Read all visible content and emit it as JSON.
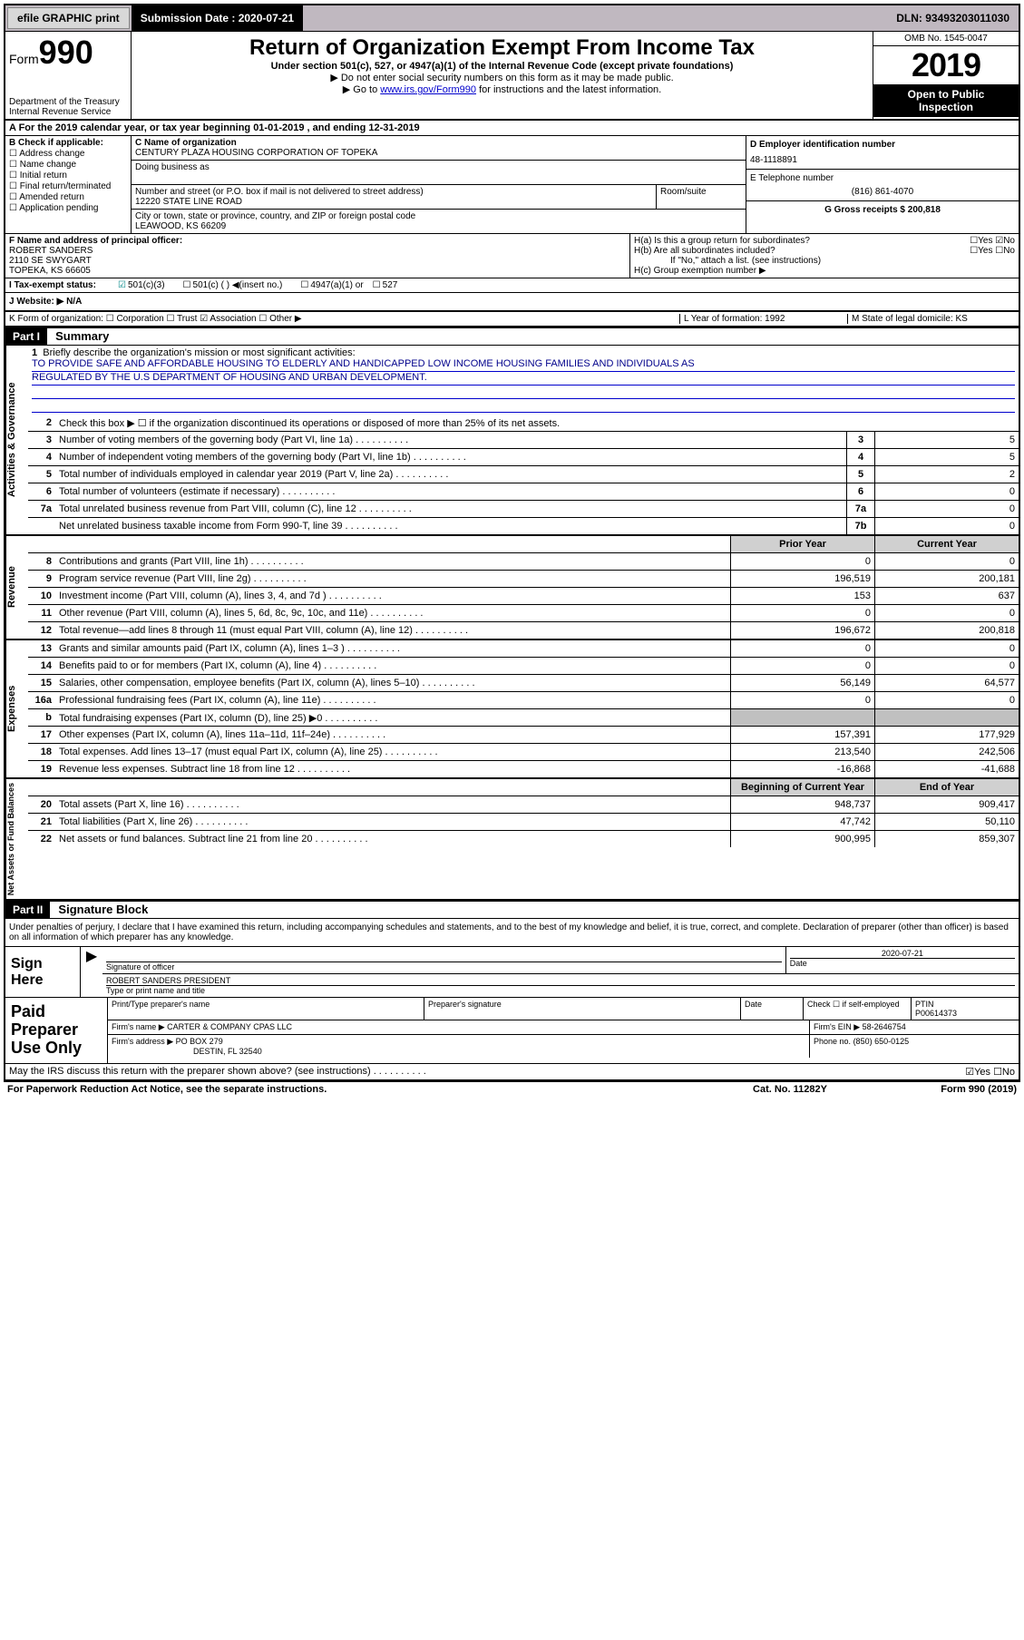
{
  "topbar": {
    "efile": "efile GRAPHIC print",
    "submission_label": "Submission Date : 2020-07-21",
    "dln": "DLN: 93493203011030"
  },
  "header": {
    "form_label": "Form",
    "form_number": "990",
    "dept": "Department of the Treasury",
    "irs": "Internal Revenue Service",
    "title": "Return of Organization Exempt From Income Tax",
    "subtitle": "Under section 501(c), 527, or 4947(a)(1) of the Internal Revenue Code (except private foundations)",
    "note1": "▶ Do not enter social security numbers on this form as it may be made public.",
    "note2_pre": "▶ Go to ",
    "note2_link": "www.irs.gov/Form990",
    "note2_post": " for instructions and the latest information.",
    "omb": "OMB No. 1545-0047",
    "year": "2019",
    "otp1": "Open to Public",
    "otp2": "Inspection"
  },
  "row_a": "A  For the 2019 calendar year, or tax year beginning 01-01-2019    , and ending 12-31-2019",
  "col_b": {
    "label": "B Check if applicable:",
    "items": [
      "Address change",
      "Name change",
      "Initial return",
      "Final return/terminated",
      "Amended return",
      "Application pending"
    ]
  },
  "col_c": {
    "name_label": "C Name of organization",
    "name": "CENTURY PLAZA HOUSING CORPORATION OF TOPEKA",
    "dba_label": "Doing business as",
    "addr_label": "Number and street (or P.O. box if mail is not delivered to street address)",
    "addr": "12220 STATE LINE ROAD",
    "room_label": "Room/suite",
    "city_label": "City or town, state or province, country, and ZIP or foreign postal code",
    "city": "LEAWOOD, KS  66209"
  },
  "col_deg": {
    "d_label": "D Employer identification number",
    "d_val": "48-1118891",
    "e_label": "E Telephone number",
    "e_val": "(816) 861-4070",
    "g_label": "G Gross receipts $ 200,818"
  },
  "col_f": {
    "label": "F  Name and address of principal officer:",
    "name": "ROBERT SANDERS",
    "addr1": "2110 SE SWYGART",
    "addr2": "TOPEKA, KS  66605"
  },
  "col_h": {
    "ha": "H(a)  Is this a group return for subordinates?",
    "ha_ans": "☐Yes  ☑No",
    "hb": "H(b)  Are all subordinates included?",
    "hb_ans": "☐Yes  ☐No",
    "hb_note": "If \"No,\" attach a list. (see instructions)",
    "hc": "H(c)  Group exemption number ▶"
  },
  "row_i": {
    "label": "I  Tax-exempt status:",
    "opt1": "501(c)(3)",
    "opt2": "501(c) (  ) ◀(insert no.)",
    "opt3": "4947(a)(1) or",
    "opt4": "527"
  },
  "row_j": "J  Website: ▶   N/A",
  "row_k": {
    "left": "K Form of organization:   ☐ Corporation  ☐ Trust  ☑ Association  ☐ Other ▶",
    "l": "L Year of formation: 1992",
    "m": "M State of legal domicile: KS"
  },
  "part1": {
    "header": "Part I",
    "title": "Summary"
  },
  "briefly": {
    "num": "1",
    "label": "Briefly describe the organization's mission or most significant activities:",
    "text1": "TO PROVIDE SAFE AND AFFORDABLE HOUSING TO ELDERLY AND HANDICAPPED LOW INCOME HOUSING FAMILIES AND INDIVIDUALS AS",
    "text2": "REGULATED BY THE U.S DEPARTMENT OF HOUSING AND URBAN DEVELOPMENT."
  },
  "gov_lines": [
    {
      "num": "2",
      "txt": "Check this box ▶ ☐  if the organization discontinued its operations or disposed of more than 25% of its net assets."
    },
    {
      "num": "3",
      "txt": "Number of voting members of the governing body (Part VI, line 1a)",
      "box": "3",
      "val": "5"
    },
    {
      "num": "4",
      "txt": "Number of independent voting members of the governing body (Part VI, line 1b)",
      "box": "4",
      "val": "5"
    },
    {
      "num": "5",
      "txt": "Total number of individuals employed in calendar year 2019 (Part V, line 2a)",
      "box": "5",
      "val": "2"
    },
    {
      "num": "6",
      "txt": "Total number of volunteers (estimate if necessary)",
      "box": "6",
      "val": "0"
    },
    {
      "num": "7a",
      "txt": "Total unrelated business revenue from Part VIII, column (C), line 12",
      "box": "7a",
      "val": "0"
    },
    {
      "num": "",
      "txt": "Net unrelated business taxable income from Form 990-T, line 39",
      "box": "7b",
      "val": "0"
    }
  ],
  "twocol_head": {
    "prior": "Prior Year",
    "current": "Current Year"
  },
  "rev_lines": [
    {
      "num": "8",
      "txt": "Contributions and grants (Part VIII, line 1h)",
      "p": "0",
      "c": "0"
    },
    {
      "num": "9",
      "txt": "Program service revenue (Part VIII, line 2g)",
      "p": "196,519",
      "c": "200,181"
    },
    {
      "num": "10",
      "txt": "Investment income (Part VIII, column (A), lines 3, 4, and 7d )",
      "p": "153",
      "c": "637"
    },
    {
      "num": "11",
      "txt": "Other revenue (Part VIII, column (A), lines 5, 6d, 8c, 9c, 10c, and 11e)",
      "p": "0",
      "c": "0"
    },
    {
      "num": "12",
      "txt": "Total revenue—add lines 8 through 11 (must equal Part VIII, column (A), line 12)",
      "p": "196,672",
      "c": "200,818"
    }
  ],
  "exp_lines": [
    {
      "num": "13",
      "txt": "Grants and similar amounts paid (Part IX, column (A), lines 1–3 )",
      "p": "0",
      "c": "0"
    },
    {
      "num": "14",
      "txt": "Benefits paid to or for members (Part IX, column (A), line 4)",
      "p": "0",
      "c": "0"
    },
    {
      "num": "15",
      "txt": "Salaries, other compensation, employee benefits (Part IX, column (A), lines 5–10)",
      "p": "56,149",
      "c": "64,577"
    },
    {
      "num": "16a",
      "txt": "Professional fundraising fees (Part IX, column (A), line 11e)",
      "p": "0",
      "c": "0"
    },
    {
      "num": "b",
      "txt": "Total fundraising expenses (Part IX, column (D), line 25) ▶0",
      "p": "",
      "c": "",
      "shade": true
    },
    {
      "num": "17",
      "txt": "Other expenses (Part IX, column (A), lines 11a–11d, 11f–24e)",
      "p": "157,391",
      "c": "177,929"
    },
    {
      "num": "18",
      "txt": "Total expenses. Add lines 13–17 (must equal Part IX, column (A), line 25)",
      "p": "213,540",
      "c": "242,506"
    },
    {
      "num": "19",
      "txt": "Revenue less expenses. Subtract line 18 from line 12",
      "p": "-16,868",
      "c": "-41,688"
    }
  ],
  "net_head": {
    "prior": "Beginning of Current Year",
    "current": "End of Year"
  },
  "net_lines": [
    {
      "num": "20",
      "txt": "Total assets (Part X, line 16)",
      "p": "948,737",
      "c": "909,417"
    },
    {
      "num": "21",
      "txt": "Total liabilities (Part X, line 26)",
      "p": "47,742",
      "c": "50,110"
    },
    {
      "num": "22",
      "txt": "Net assets or fund balances. Subtract line 21 from line 20",
      "p": "900,995",
      "c": "859,307"
    }
  ],
  "vtabs": {
    "gov": "Activities & Governance",
    "rev": "Revenue",
    "exp": "Expenses",
    "net": "Net Assets or Fund Balances"
  },
  "part2": {
    "header": "Part II",
    "title": "Signature Block",
    "declaration": "Under penalties of perjury, I declare that I have examined this return, including accompanying schedules and statements, and to the best of my knowledge and belief, it is true, correct, and complete. Declaration of preparer (other than officer) is based on all information of which preparer has any knowledge."
  },
  "sign": {
    "label": "Sign Here",
    "sig_of_officer": "Signature of officer",
    "date": "Date",
    "date_val": "2020-07-21",
    "name": "ROBERT SANDERS  PRESIDENT",
    "type_label": "Type or print name and title"
  },
  "paid": {
    "label": "Paid Preparer Use Only",
    "print_label": "Print/Type preparer's name",
    "sig_label": "Preparer's signature",
    "date_label": "Date",
    "check_label": "Check ☐ if self-employed",
    "ptin_label": "PTIN",
    "ptin_val": "P00614373",
    "firm_name_label": "Firm's name     ▶",
    "firm_name": "CARTER & COMPANY CPAS LLC",
    "firm_ein_label": "Firm's EIN ▶",
    "firm_ein": "58-2646754",
    "firm_addr_label": "Firm's address ▶",
    "firm_addr1": "PO BOX 279",
    "firm_addr2": "DESTIN, FL  32540",
    "phone_label": "Phone no.",
    "phone": "(850) 650-0125"
  },
  "footer": {
    "discuss": "May the IRS discuss this return with the preparer shown above? (see instructions)",
    "discuss_ans": "☑Yes  ☐No",
    "paperwork": "For Paperwork Reduction Act Notice, see the separate instructions.",
    "cat": "Cat. No. 11282Y",
    "form": "Form 990 (2019)"
  }
}
